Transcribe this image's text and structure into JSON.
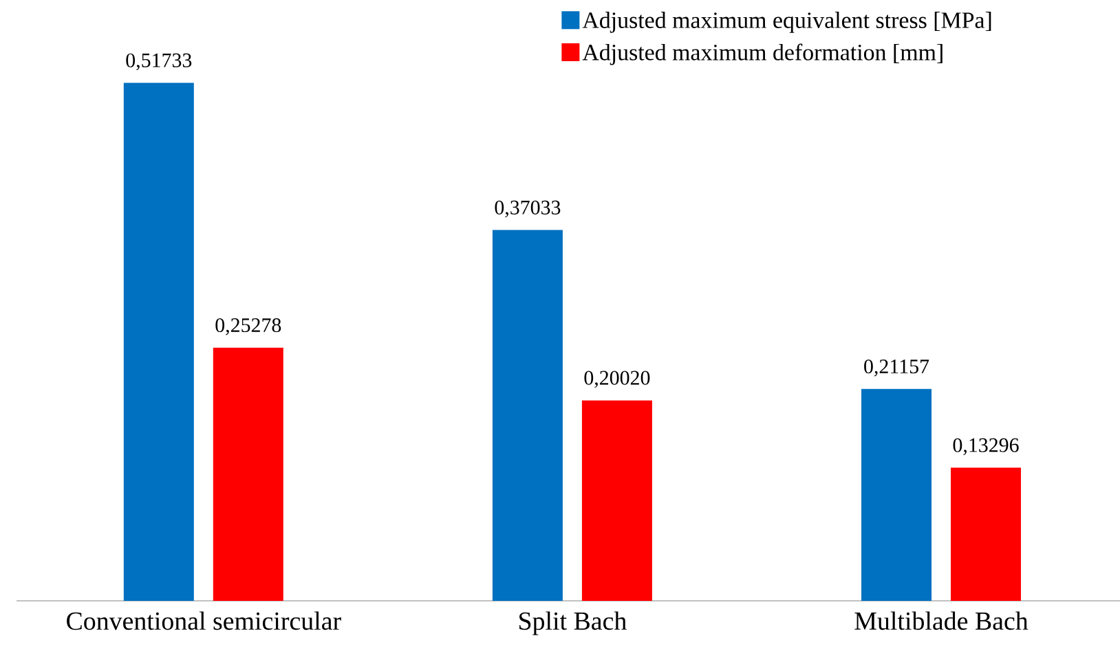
{
  "chart_data": {
    "type": "bar",
    "categories": [
      "Conventional semicircular",
      "Split Bach",
      "Multiblade Bach"
    ],
    "series": [
      {
        "name": "Adjusted maximum equivalent stress [MPa]",
        "color": "#0070c0",
        "values": [
          0.51733,
          0.37033,
          0.21157
        ],
        "value_labels": [
          "0,51733",
          "0,37033",
          "0,21157"
        ]
      },
      {
        "name": "Adjusted maximum deformation [mm]",
        "color": "#ff0000",
        "values": [
          0.25278,
          0.2002,
          0.13296
        ],
        "value_labels": [
          "0,25278",
          "0,20020",
          "0,13296"
        ]
      }
    ],
    "legend": "top right"
  }
}
